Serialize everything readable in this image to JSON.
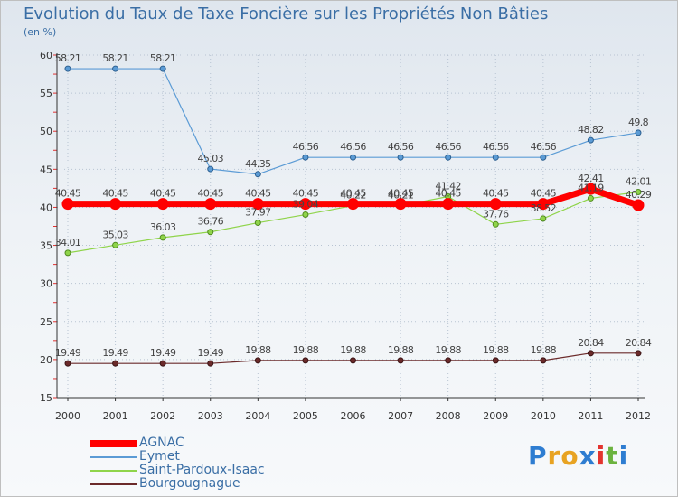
{
  "title": "Evolution du Taux de Taxe Foncière sur les Propriétés Non Bâties",
  "unit_label": "(en %)",
  "logo": {
    "text": "Proxiti",
    "letters": [
      {
        "ch": "P",
        "color": "#2e7dd1"
      },
      {
        "ch": "r",
        "color": "#e8a322"
      },
      {
        "ch": "o",
        "color": "#e8a322"
      },
      {
        "ch": "x",
        "color": "#2e7dd1"
      },
      {
        "ch": "i",
        "color": "#e3342f"
      },
      {
        "ch": "t",
        "color": "#6cb33f"
      },
      {
        "ch": "i",
        "color": "#2e7dd1"
      }
    ]
  },
  "chart_data": {
    "type": "line",
    "title": "Evolution du Taux de Taxe Foncière sur les Propriétés Non Bâties",
    "ylabel": "(en %)",
    "xlabel": "",
    "ylim": [
      15,
      60
    ],
    "yticks": [
      15,
      20,
      25,
      30,
      35,
      40,
      45,
      50,
      55,
      60
    ],
    "categories": [
      "2000",
      "2001",
      "2002",
      "2003",
      "2004",
      "2005",
      "2006",
      "2007",
      "2008",
      "2009",
      "2010",
      "2011",
      "2012"
    ],
    "legend_position": "bottom-left",
    "series": [
      {
        "name": "AGNAC",
        "color": "#ff0000",
        "values": [
          40.45,
          40.45,
          40.45,
          40.45,
          40.45,
          40.45,
          40.45,
          40.45,
          40.45,
          40.45,
          40.45,
          42.41,
          40.29
        ],
        "labels": [
          "40.45",
          "40.45",
          "40.45",
          "40.45",
          "40.45",
          "40.45",
          "40.45",
          "40.45",
          "40.45",
          "40.45",
          "40.45",
          "42.41",
          "40.29"
        ]
      },
      {
        "name": "Eymet",
        "color": "#5b9bd5",
        "values": [
          58.21,
          58.21,
          58.21,
          45.03,
          44.35,
          46.56,
          46.56,
          46.56,
          46.56,
          46.56,
          46.56,
          48.82,
          49.8
        ],
        "labels": [
          "58.21",
          "58.21",
          "58.21",
          "45.03",
          "44.35",
          "46.56",
          "46.56",
          "46.56",
          "46.56",
          "46.56",
          "46.56",
          "48.82",
          "49.8"
        ]
      },
      {
        "name": "Saint-Pardoux-Isaac",
        "color": "#8fd44a",
        "values": [
          34.01,
          35.03,
          36.03,
          36.76,
          37.97,
          39.04,
          40.22,
          40.21,
          41.42,
          37.76,
          38.52,
          41.19,
          42.01
        ],
        "labels": [
          "34.01",
          "35.03",
          "36.03",
          "36.76",
          "37.97",
          "39.04",
          "40.22",
          "40.21",
          "41.42",
          "37.76",
          "38.52",
          "41.19",
          "42.01"
        ]
      },
      {
        "name": "Bourgougnague",
        "color": "#6b2a2a",
        "values": [
          19.49,
          19.49,
          19.49,
          19.49,
          19.88,
          19.88,
          19.88,
          19.88,
          19.88,
          19.88,
          19.88,
          20.84,
          20.84
        ],
        "labels": [
          "19.49",
          "19.49",
          "19.49",
          "19.49",
          "19.88",
          "19.88",
          "19.88",
          "19.88",
          "19.88",
          "19.88",
          "19.88",
          "20.84",
          "20.84"
        ]
      }
    ]
  }
}
